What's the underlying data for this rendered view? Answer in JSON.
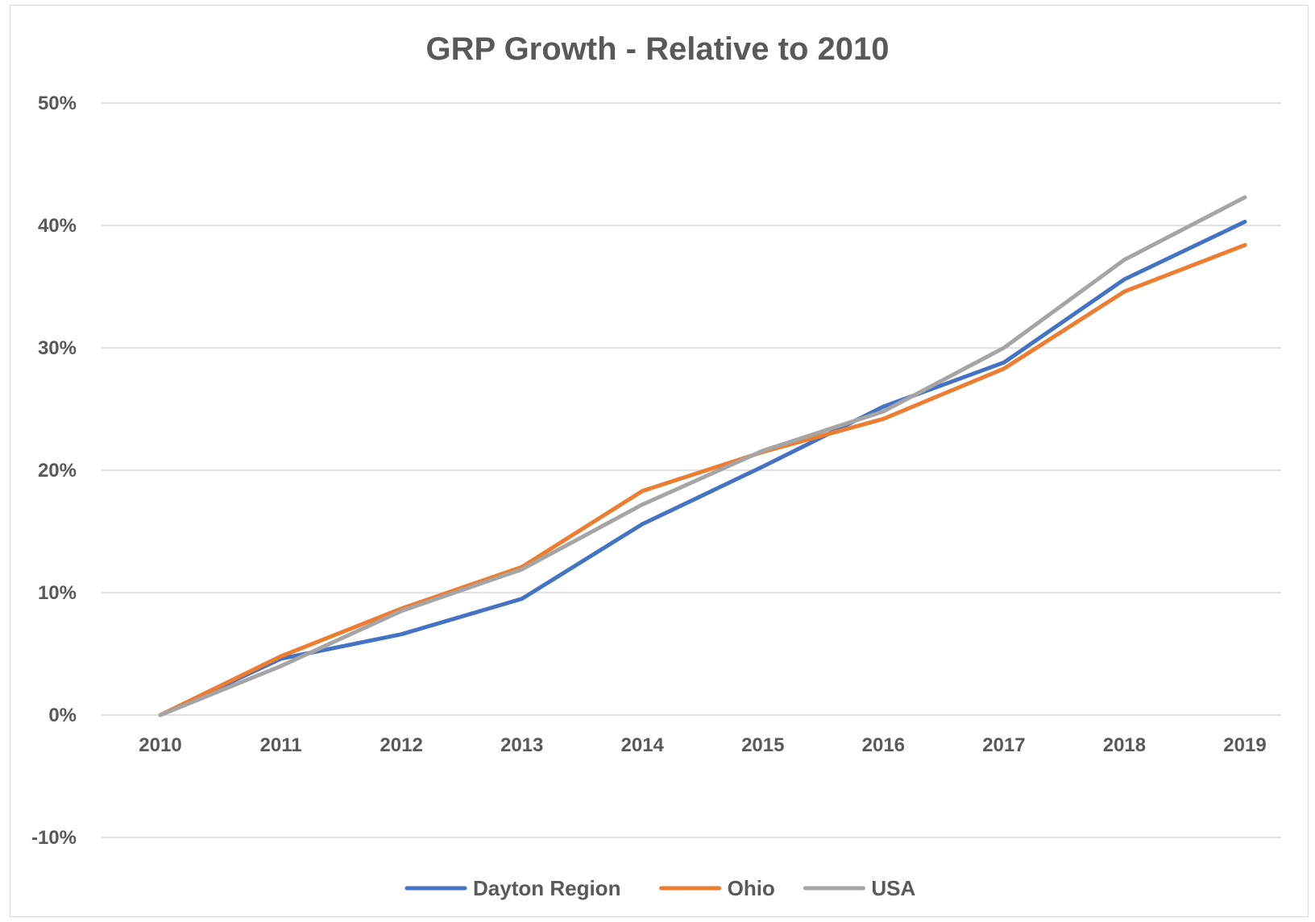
{
  "chart_data": {
    "type": "line",
    "title": "GRP Growth - Relative to 2010",
    "xlabel": "",
    "ylabel": "",
    "categories": [
      "2010",
      "2011",
      "2012",
      "2013",
      "2014",
      "2015",
      "2016",
      "2017",
      "2018",
      "2019"
    ],
    "y_ticks": [
      50,
      40,
      30,
      20,
      10,
      0,
      -10
    ],
    "y_tick_labels": [
      "50%",
      "40%",
      "30%",
      "20%",
      "10%",
      "0%",
      "-10%"
    ],
    "ylim": [
      -10,
      50
    ],
    "y_unit": "%",
    "grid": true,
    "legend_position": "bottom",
    "series": [
      {
        "name": "Dayton Region",
        "color": "#4472C4",
        "values": [
          0,
          4.6,
          6.6,
          9.5,
          15.6,
          20.3,
          25.2,
          28.8,
          35.6,
          40.3
        ]
      },
      {
        "name": "Ohio",
        "color": "#ED7D31",
        "values": [
          0,
          4.8,
          8.7,
          12.1,
          18.3,
          21.5,
          24.2,
          28.3,
          34.6,
          38.4
        ]
      },
      {
        "name": "USA",
        "color": "#A5A5A5",
        "values": [
          0,
          4.0,
          8.5,
          11.9,
          17.2,
          21.6,
          24.8,
          30.0,
          37.2,
          42.3
        ]
      }
    ]
  }
}
